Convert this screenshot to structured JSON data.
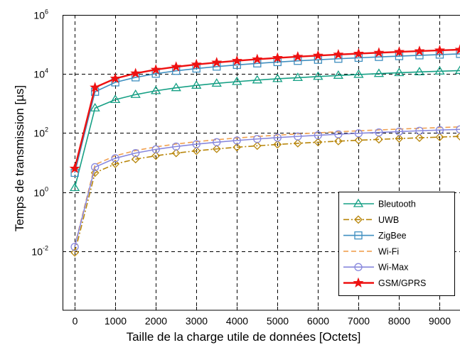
{
  "chart_data": {
    "type": "line",
    "title": "",
    "xlabel": "Taille de la charge utile de données [Octets]",
    "ylabel": "Temps de transmission [µs]",
    "x_scale": "linear",
    "y_scale": "log",
    "xlim": [
      -300,
      9500
    ],
    "ylim": [
      0.0001,
      1000000
    ],
    "x_ticks": [
      0,
      1000,
      2000,
      3000,
      4000,
      5000,
      6000,
      7000,
      8000,
      9000
    ],
    "y_ticks": [
      {
        "value": 0.01,
        "base": "10",
        "exp": "-2"
      },
      {
        "value": 1,
        "base": "10",
        "exp": "0"
      },
      {
        "value": 100,
        "base": "10",
        "exp": "2"
      },
      {
        "value": 10000,
        "base": "10",
        "exp": "4"
      },
      {
        "value": 1000000,
        "base": "10",
        "exp": "6"
      }
    ],
    "grid": true,
    "legend_position": "bottom-right",
    "x": [
      0,
      500,
      1000,
      1500,
      2000,
      2500,
      3000,
      3500,
      4000,
      4500,
      5000,
      5500,
      6000,
      6500,
      7000,
      7500,
      8000,
      8500,
      9000,
      9500
    ],
    "series": [
      {
        "name": "Bleutooth",
        "color": "#16a085",
        "marker": "triangle",
        "dash": "solid",
        "values": [
          1.4,
          700,
          1350,
          2000,
          2700,
          3400,
          4100,
          4800,
          5500,
          6200,
          6900,
          7500,
          8200,
          8900,
          9600,
          10300,
          11000,
          11700,
          12400,
          13000
        ]
      },
      {
        "name": "UWB",
        "color": "#b8860b",
        "marker": "diamond",
        "dash": "dashdot",
        "values": [
          0.009,
          4.5,
          9,
          13,
          17,
          21,
          25,
          29,
          33,
          37,
          41,
          45,
          49,
          53,
          57,
          61,
          65,
          69,
          73,
          77
        ]
      },
      {
        "name": "ZigBee",
        "color": "#3f8fc0",
        "marker": "square",
        "dash": "solid",
        "values": [
          4.5,
          2500,
          5200,
          7700,
          10200,
          12800,
          15300,
          17800,
          20300,
          22800,
          25300,
          27800,
          30300,
          32800,
          35300,
          37800,
          40300,
          42800,
          45300,
          47800
        ]
      },
      {
        "name": "Wi-Fi",
        "color": "#f0a050",
        "marker": "none",
        "dash": "dashed",
        "values": [
          0.015,
          8.5,
          17,
          25.5,
          34,
          42.5,
          51,
          59.5,
          68,
          76.5,
          85,
          93.5,
          102,
          110.5,
          119,
          127.5,
          136,
          144.5,
          153,
          161.5
        ]
      },
      {
        "name": "Wi-Max",
        "color": "#8888dd",
        "marker": "circle",
        "dash": "solid",
        "values": [
          0.014,
          7,
          14,
          21,
          28,
          35,
          42,
          49,
          56,
          63,
          70,
          77,
          84,
          91,
          98,
          105,
          112,
          119,
          126,
          133
        ]
      },
      {
        "name": "GSM/GPRS",
        "color": "#ee1111",
        "marker": "star",
        "dash": "solid",
        "values": [
          6.3,
          3500,
          7000,
          10500,
          14000,
          17500,
          21000,
          24500,
          28000,
          31500,
          35000,
          38500,
          42000,
          45500,
          49000,
          52500,
          56000,
          59500,
          63000,
          66500
        ]
      }
    ]
  }
}
